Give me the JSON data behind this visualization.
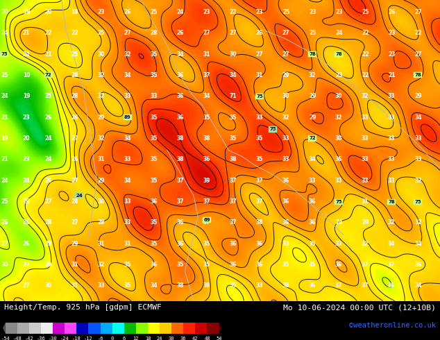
{
  "title_left": "Height/Temp. 925 hPa [gdpm] ECMWF",
  "title_right": "Mo 10-06-2024 00:00 UTC (12+10B)",
  "credit": "©weatheronline.co.uk",
  "colorbar_levels": [
    -54,
    -48,
    -42,
    -36,
    -30,
    -24,
    -18,
    -12,
    -6,
    0,
    6,
    12,
    18,
    24,
    30,
    36,
    42,
    48,
    54
  ],
  "colorbar_colors": [
    "#888888",
    "#aaaaaa",
    "#cccccc",
    "#eeeeee",
    "#cc00cc",
    "#ff44ff",
    "#0000bb",
    "#0055ff",
    "#00aaff",
    "#00ffee",
    "#00bb00",
    "#88ff00",
    "#ffff00",
    "#ffcc00",
    "#ff6600",
    "#ff2200",
    "#cc0000",
    "#880000"
  ],
  "figsize": [
    6.34,
    4.9
  ],
  "dpi": 100,
  "bg_color": "#000000",
  "map_dominant_color": "#cc1100",
  "left_edge_color": "#ff6600",
  "credit_color": "#3366ff"
}
